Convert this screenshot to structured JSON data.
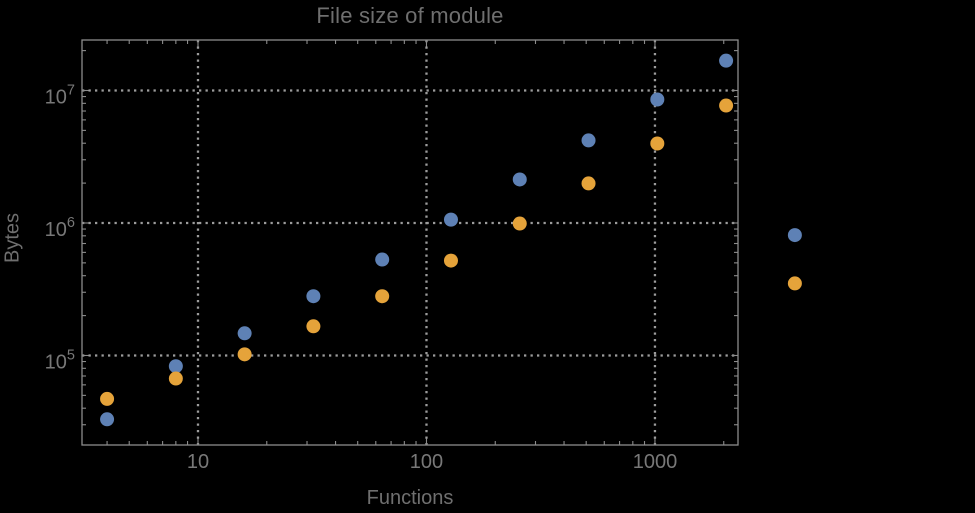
{
  "title": "File size of module",
  "axes": {
    "x_label": "Functions",
    "y_label": "Bytes",
    "x_tick_labels": [
      "10",
      "100",
      "1000"
    ],
    "y_tick_labels": [
      "10^5",
      "10^6",
      "10^7"
    ]
  },
  "colors": {
    "background": "#000000",
    "frame": "#8c8c8c",
    "grid": "#9c9c9c",
    "tick_text": "#787878",
    "title_text": "#6f6f6f",
    "series_blue": "#5e81b5",
    "series_orange": "#e5a33a"
  },
  "chart_data": {
    "type": "scatter",
    "title": "File size of module",
    "xlabel": "Functions",
    "ylabel": "Bytes",
    "xscale": "log",
    "yscale": "log",
    "grid": true,
    "grid_style": "dotted",
    "frame": true,
    "legend_position": "none",
    "xlim": [
      3.107,
      2309
    ],
    "ylim": [
      21100,
      24050000
    ],
    "xticks": [
      10,
      100,
      1000
    ],
    "yticks": [
      100000,
      1000000,
      10000000
    ],
    "x": [
      4,
      8,
      16,
      32,
      64,
      128,
      256,
      512,
      1024,
      2048,
      4096
    ],
    "series": [
      {
        "name": "series-1-blue",
        "color": "#5e81b5",
        "values": [
          33000,
          83000,
          147000,
          280000,
          530000,
          1060000,
          2130000,
          4200000,
          8550000,
          16800000,
          810000
        ]
      },
      {
        "name": "series-2-orange",
        "color": "#e5a33a",
        "values": [
          47000,
          67000,
          102000,
          166000,
          280000,
          520000,
          990000,
          1990000,
          3980000,
          7700000,
          350000
        ]
      }
    ]
  }
}
